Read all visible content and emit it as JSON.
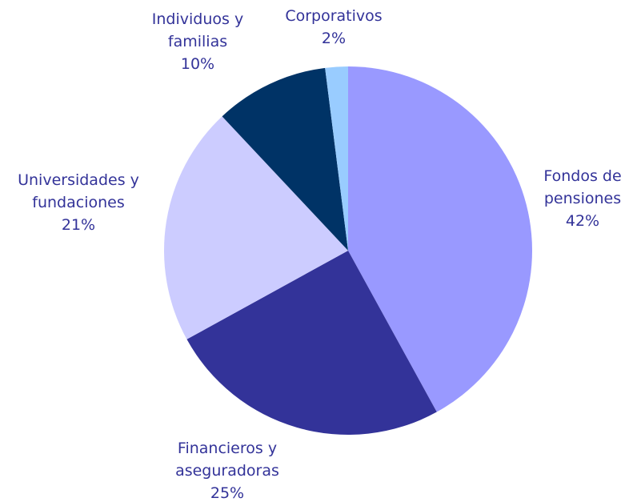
{
  "chart_data": {
    "type": "pie",
    "categories": [
      "Fondos de pensiones",
      "Financieros y aseguradoras",
      "Universidades y fundaciones",
      "Individuos y familias",
      "Corporativos"
    ],
    "values": [
      42,
      25,
      21,
      10,
      2
    ],
    "value_labels": [
      "42%",
      "25%",
      "21%",
      "10%",
      "2%"
    ],
    "colors": [
      "#9999ff",
      "#333399",
      "#ccccff",
      "#003366",
      "#99ccff"
    ]
  }
}
